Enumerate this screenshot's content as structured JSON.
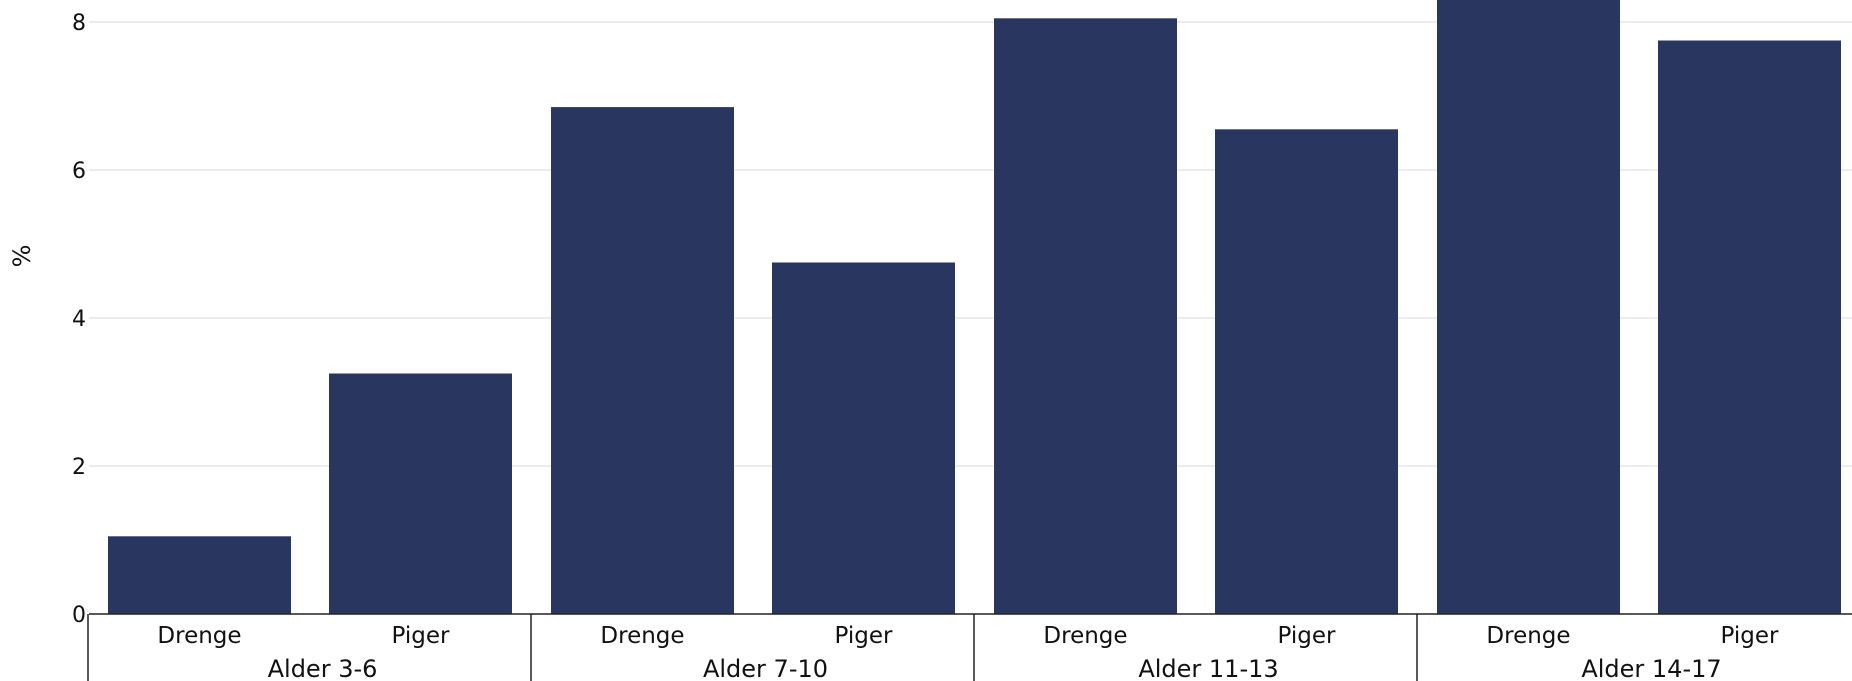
{
  "chart_data": {
    "type": "bar",
    "ylabel": "%",
    "xlabel": "",
    "title": "",
    "ylim": [
      0,
      8.8
    ],
    "yticks": [
      0,
      2,
      4,
      6,
      8
    ],
    "grid": true,
    "bar_color": "#29365f",
    "groups": [
      {
        "label": "Alder 3-6",
        "categories": [
          "Drenge",
          "Piger"
        ],
        "values": [
          1.05,
          3.25
        ]
      },
      {
        "label": "Alder 7-10",
        "categories": [
          "Drenge",
          "Piger"
        ],
        "values": [
          6.85,
          4.75
        ]
      },
      {
        "label": "Alder 11-13",
        "categories": [
          "Drenge",
          "Piger"
        ],
        "values": [
          8.05,
          6.55
        ]
      },
      {
        "label": "Alder 14-17",
        "categories": [
          "Drenge",
          "Piger"
        ],
        "values": [
          8.35,
          7.75
        ]
      }
    ]
  }
}
